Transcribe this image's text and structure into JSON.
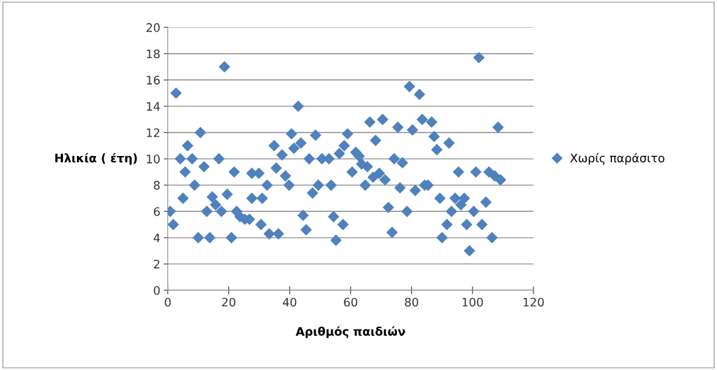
{
  "chart_data": {
    "type": "scatter",
    "xlabel": "Αριθμός παιδιών",
    "ylabel": "Ηλικία ( έτη)",
    "xlim": [
      0,
      120
    ],
    "xticks": [
      0,
      20,
      40,
      60,
      80,
      100,
      120
    ],
    "ylim": [
      0,
      20
    ],
    "yticks": [
      0,
      2,
      4,
      6,
      8,
      10,
      12,
      14,
      16,
      18,
      20
    ],
    "grid": "y",
    "legend": "right",
    "marker": "diamond",
    "series": [
      {
        "name": "Χωρίς παράσιτο",
        "color": "#4f81bd",
        "x": [
          0.8,
          1.8,
          2.7,
          4.1,
          5.0,
          5.7,
          6.5,
          8.0,
          8.8,
          10.0,
          10.7,
          11.9,
          12.8,
          13.8,
          14.6,
          15.7,
          17.6,
          16.8,
          18.6,
          19.5,
          21.8,
          20.9,
          22.6,
          23.7,
          25.3,
          26.8,
          27.6,
          29.9,
          27.6,
          31.0,
          32.6,
          30.6,
          33.3,
          36.3,
          34.9,
          35.6,
          37.5,
          38.6,
          39.8,
          40.6,
          41.4,
          43.7,
          42.8,
          44.4,
          45.4,
          46.4,
          47.5,
          49.4,
          48.5,
          50.6,
          52.9,
          53.6,
          54.4,
          55.2,
          57.5,
          56.3,
          57.9,
          59.0,
          60.5,
          61.7,
          62.8,
          63.6,
          65.5,
          64.8,
          67.4,
          69.4,
          71.3,
          66.3,
          68.2,
          70.5,
          72.4,
          73.6,
          74.3,
          77.0,
          75.5,
          76.2,
          78.5,
          79.3,
          80.3,
          81.2,
          82.6,
          83.5,
          84.3,
          85.4,
          86.6,
          87.4,
          88.3,
          89.3,
          90.0,
          91.6,
          92.3,
          93.1,
          94.3,
          95.4,
          96.2,
          97.3,
          98.1,
          99.0,
          100.4,
          101.1,
          102.1,
          103.1,
          104.4,
          105.4,
          107.3,
          109.2,
          106.4,
          108.4
        ],
        "values": [
          6.0,
          5.0,
          15.0,
          10.0,
          7.0,
          9.0,
          11.0,
          10.0,
          8.0,
          4.0,
          12.0,
          9.4,
          6.0,
          4.0,
          7.1,
          6.5,
          6.0,
          10.0,
          17.0,
          7.3,
          9.0,
          4.0,
          6.0,
          5.6,
          5.4,
          5.4,
          8.9,
          8.9,
          7.0,
          7.0,
          8.0,
          5.0,
          4.3,
          4.3,
          11.0,
          9.3,
          10.3,
          8.7,
          8.0,
          11.9,
          10.8,
          11.2,
          14.0,
          5.7,
          4.6,
          10.0,
          7.4,
          8.0,
          11.8,
          10.0,
          10.0,
          8.0,
          5.6,
          3.8,
          5.0,
          10.4,
          11.0,
          11.9,
          9.0,
          10.5,
          10.2,
          9.6,
          9.4,
          8.0,
          8.6,
          8.9,
          8.4,
          12.8,
          11.4,
          13.0,
          6.3,
          4.4,
          10.0,
          9.7,
          12.4,
          7.8,
          6.0,
          15.5,
          12.2,
          7.6,
          14.9,
          13.0,
          8.0,
          8.0,
          12.8,
          11.7,
          10.7,
          7.0,
          4.0,
          5.0,
          11.2,
          6.0,
          7.0,
          9.0,
          6.5,
          7.0,
          5.0,
          3.0,
          6.0,
          9.0,
          17.7,
          5.0,
          6.7,
          9.0,
          8.7,
          8.4,
          4.0,
          12.4
        ]
      }
    ]
  }
}
